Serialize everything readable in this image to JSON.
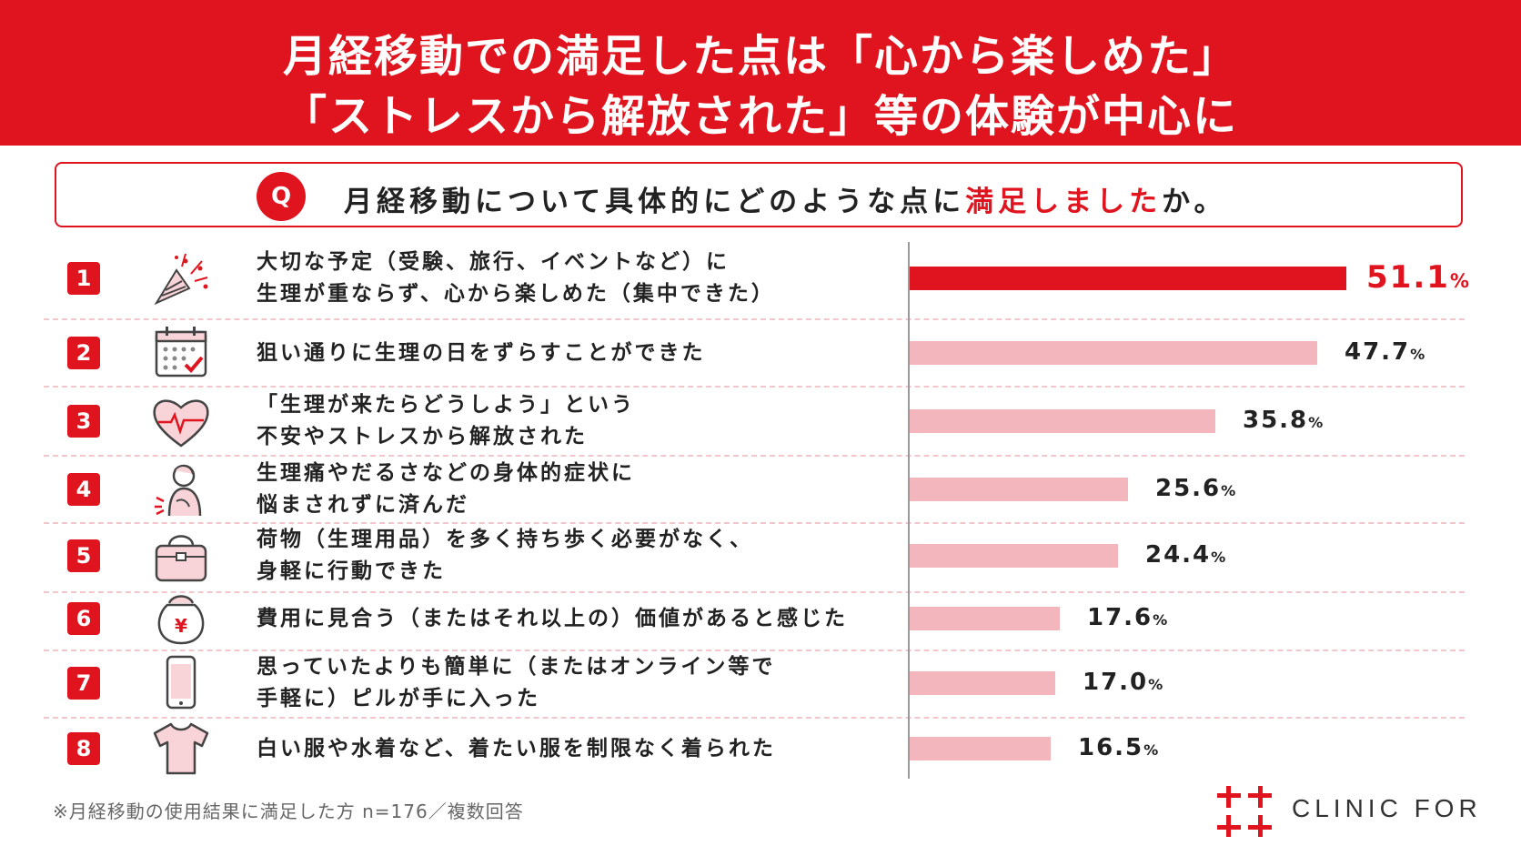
{
  "header": {
    "line1": "月経移動での満足した点は「心から楽しめた」",
    "line2": "「ストレスから解放された」等の体験が中心に"
  },
  "question": {
    "badge": "Q",
    "text_before": "月経移動について具体的にどのような点に",
    "text_highlight": "満足しました",
    "text_after": "か。"
  },
  "colors": {
    "accent": "#e0141e",
    "bar_top": "#e0141e",
    "bar_rest": "#f3b6bd"
  },
  "chart_data": {
    "type": "bar",
    "orientation": "horizontal",
    "unit": "%",
    "categories": [
      "大切な予定（受験、旅行、イベントなど）に生理が重ならず、心から楽しめた（集中できた）",
      "狙い通りに生理の日をずらすことができた",
      "「生理が来たらどうしよう」という不安やストレスから解放された",
      "生理痛やだるさなどの身体的症状に悩まされずに済んだ",
      "荷物（生理用品）を多く持ち歩く必要がなく、身軽に行動できた",
      "費用に見合う（またはそれ以上の）価値があると感じた",
      "思っていたよりも簡単に（またはオンライン等で手軽に）ピルが手に入った",
      "白い服や水着など、着たい服を制限なく着られた"
    ],
    "values": [
      51.1,
      47.7,
      35.8,
      25.6,
      24.4,
      17.6,
      17.0,
      16.5
    ],
    "value_labels": [
      "51.1",
      "47.7",
      "35.8",
      "25.6",
      "24.4",
      "17.6",
      "17.0",
      "16.5"
    ],
    "xlim": [
      0,
      51.1
    ]
  },
  "items": [
    {
      "rank": "1",
      "icon": "party-cracker-icon",
      "lines": [
        "大切な予定（受験、旅行、イベントなど）に",
        "生理が重ならず、心から楽しめた（集中できた）"
      ]
    },
    {
      "rank": "2",
      "icon": "calendar-check-icon",
      "lines": [
        "狙い通りに生理の日をずらすことができた"
      ]
    },
    {
      "rank": "3",
      "icon": "heart-pulse-icon",
      "lines": [
        "「生理が来たらどうしよう」という",
        "不安やストレスから解放された"
      ]
    },
    {
      "rank": "4",
      "icon": "woman-pain-icon",
      "lines": [
        "生理痛やだるさなどの身体的症状に",
        "悩まされずに済んだ"
      ]
    },
    {
      "rank": "5",
      "icon": "handbag-icon",
      "lines": [
        "荷物（生理用品）を多く持ち歩く必要がなく、",
        "身軽に行動できた"
      ]
    },
    {
      "rank": "6",
      "icon": "yen-pouch-icon",
      "lines": [
        "費用に見合う（またはそれ以上の）価値があると感じた"
      ]
    },
    {
      "rank": "7",
      "icon": "smartphone-icon",
      "lines": [
        "思っていたよりも簡単に（またはオンライン等で",
        "手軽に）ピルが手に入った"
      ]
    },
    {
      "rank": "8",
      "icon": "tshirt-icon",
      "lines": [
        "白い服や水着など、着たい服を制限なく着られた"
      ]
    }
  ],
  "footnote": "※月経移動の使用結果に満足した方 n=176／複数回答",
  "logo": {
    "text": "CLINIC FOR",
    "icon": "clinic-for-logo-icon"
  }
}
